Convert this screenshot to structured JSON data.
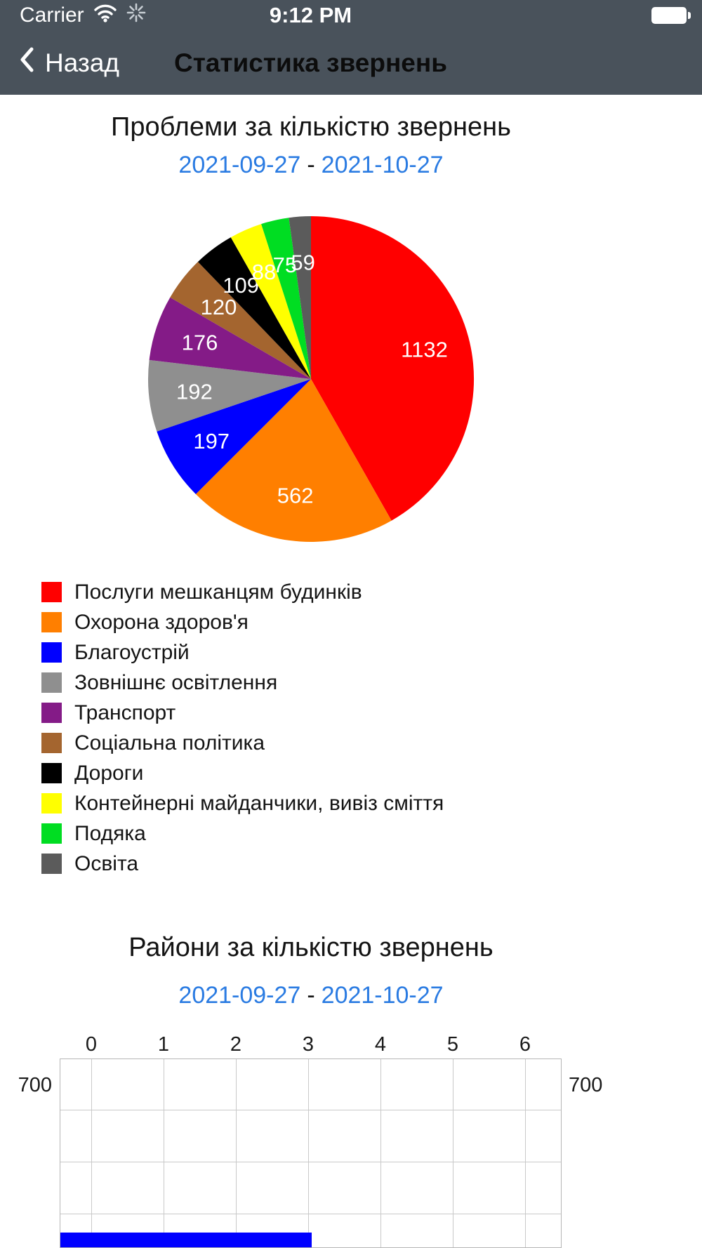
{
  "status_bar": {
    "carrier": "Carrier",
    "time": "9:12 PM"
  },
  "nav_bar": {
    "back_label": "Назад",
    "title": "Статистика звернень"
  },
  "ui": {
    "date_separator": "-"
  },
  "chart_data": [
    {
      "type": "pie",
      "title": "Проблеми за кількістю звернень",
      "date_range": [
        "2021-09-27",
        "2021-10-27"
      ],
      "legend_position": "bottom-left",
      "value_label_color": "#ffffff",
      "slices": [
        {
          "label": "Послуги мешканцям будинків",
          "value": 1132,
          "color": "#FF0000"
        },
        {
          "label": "Охорона здоров'я",
          "value": 562,
          "color": "#FF7F00"
        },
        {
          "label": "Благоустрій",
          "value": 197,
          "color": "#0000FF"
        },
        {
          "label": "Зовнішнє освітлення",
          "value": 192,
          "color": "#8F8F8F"
        },
        {
          "label": "Транспорт",
          "value": 176,
          "color": "#841B87"
        },
        {
          "label": "Соціальна політика",
          "value": 120,
          "color": "#A4652F"
        },
        {
          "label": "Дороги",
          "value": 109,
          "color": "#000000"
        },
        {
          "label": "Контейнерні майданчики, вивіз сміття",
          "value": 88,
          "color": "#FFFF00"
        },
        {
          "label": "Подяка",
          "value": 75,
          "color": "#00DD22"
        },
        {
          "label": "Освіта",
          "value": 59,
          "color": "#5B5B5B"
        }
      ]
    },
    {
      "type": "bar",
      "orientation": "horizontal",
      "title": "Райони за кількістю звернень",
      "date_range": [
        "2021-09-27",
        "2021-10-27"
      ],
      "x_axis_position": "top",
      "x_ticks": [
        "0",
        "1",
        "2",
        "3",
        "4",
        "5",
        "6"
      ],
      "y_ticks": [
        "700"
      ],
      "grid": true,
      "first_bar_color": "#0000FF",
      "clipped_at_bottom": true
    }
  ]
}
